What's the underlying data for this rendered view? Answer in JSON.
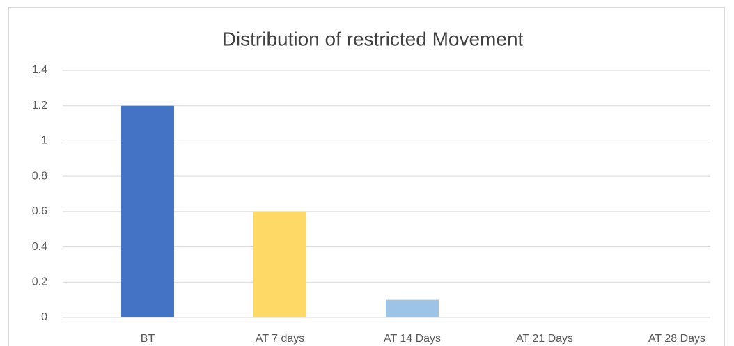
{
  "chart_data": {
    "type": "bar",
    "title": "Distribution of restricted Movement",
    "categories": [
      "BT",
      "AT 7 days",
      "AT 14 Days",
      "AT 21 Days",
      "AT 28 Days"
    ],
    "values": [
      1.2,
      0.6,
      0.1,
      0,
      0
    ],
    "colors": [
      "#4472c4",
      "#ffd966",
      "#9dc3e6",
      "#a5a5a5",
      "#70ad47"
    ],
    "ylim": [
      0,
      1.4
    ],
    "yticks": [
      0,
      0.2,
      0.4,
      0.6,
      0.8,
      1,
      1.2,
      1.4
    ],
    "grid": true
  }
}
